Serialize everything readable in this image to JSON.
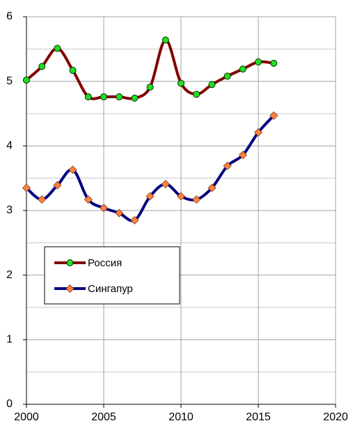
{
  "chart_data": {
    "type": "line",
    "x": [
      2000,
      2001,
      2002,
      2003,
      2004,
      2005,
      2006,
      2007,
      2008,
      2009,
      2010,
      2011,
      2012,
      2013,
      2014,
      2015,
      2016
    ],
    "series": [
      {
        "name": "Россия",
        "color": "#800000",
        "marker": "circle",
        "marker_color": "#22dd22",
        "values": [
          5.02,
          5.23,
          5.51,
          5.17,
          4.76,
          4.76,
          4.76,
          4.74,
          4.91,
          5.64,
          4.97,
          4.8,
          4.95,
          5.08,
          5.19,
          5.3,
          5.28
        ]
      },
      {
        "name": "Сингапур",
        "color": "#000080",
        "marker": "diamond",
        "marker_color": "#ff8040",
        "values": [
          3.35,
          3.17,
          3.39,
          3.63,
          3.17,
          3.04,
          2.96,
          2.85,
          3.22,
          3.41,
          3.22,
          3.17,
          3.35,
          3.69,
          3.86,
          4.21,
          4.47
        ]
      }
    ],
    "xlim": [
      2000,
      2020
    ],
    "xticks": [
      2000,
      2005,
      2010,
      2015,
      2020
    ],
    "ylim": [
      0,
      6
    ],
    "yticks": [
      0,
      1,
      2,
      3,
      4,
      5,
      6
    ],
    "y_minor_ticks": [
      0.5,
      1.5,
      2.5,
      3.5,
      4.5,
      5.5
    ],
    "grid": true,
    "smooth": true
  }
}
